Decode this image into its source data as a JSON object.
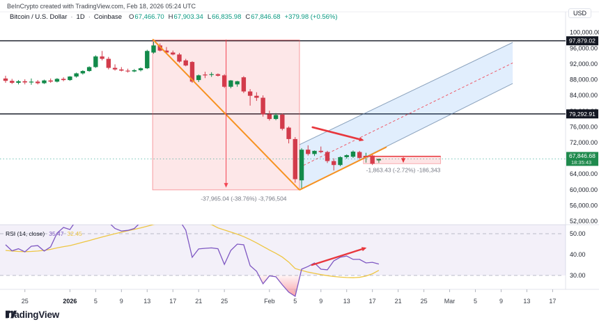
{
  "header": {
    "watermark": "BeInCrypto created with TradingView.com, Feb 18, 2026 05:24 UTC",
    "symbol": "Bitcoin / U.S. Dollar",
    "interval": "1D",
    "exchange": "Coinbase",
    "ohlc": {
      "o_label": "O",
      "o": "67,466.70",
      "h_label": "H",
      "h": "67,903.34",
      "l_label": "L",
      "l": "66,835.98",
      "c_label": "C",
      "c": "67,846.68",
      "change": "+379.98 (+0.56%)"
    },
    "currency_button": "USD"
  },
  "logo": {
    "word": "TradingView"
  },
  "rsi_label": {
    "title": "RSI (14, close)",
    "value": "35.47",
    "ma_value": "32.45"
  },
  "price_axis": {
    "labels": [
      {
        "text": "100,000.00",
        "price": 100000
      },
      {
        "text": "96,000.00",
        "price": 96000
      },
      {
        "text": "92,000.00",
        "price": 92000
      },
      {
        "text": "88,000.00",
        "price": 88000
      },
      {
        "text": "84,000.00",
        "price": 84000
      },
      {
        "text": "80,000.00",
        "price": 80000
      },
      {
        "text": "76,000.00",
        "price": 76000
      },
      {
        "text": "72,000.00",
        "price": 72000
      },
      {
        "text": "64,000.00",
        "price": 64000
      },
      {
        "text": "60,000.00",
        "price": 60000
      },
      {
        "text": "56,000.00",
        "price": 56000
      },
      {
        "text": "52,000.00",
        "price": 52000
      }
    ],
    "rsi_labels": [
      {
        "text": "50.00",
        "value": 50
      },
      {
        "text": "40.00",
        "value": 40
      },
      {
        "text": "30.00",
        "value": 30
      }
    ],
    "badges": [
      {
        "label": "97,879.02",
        "price": 97879.02,
        "type": "black"
      },
      {
        "label": "79,292.91",
        "price": 79292.91,
        "type": "black"
      },
      {
        "label": "67,846.68",
        "sub": "18:35:43",
        "price": 67846.68,
        "type": "green"
      }
    ]
  },
  "time_axis": {
    "labels": [
      {
        "label": "25",
        "day": 3
      },
      {
        "label": "2026",
        "day": 10,
        "bold": true
      },
      {
        "label": "5",
        "day": 14
      },
      {
        "label": "9",
        "day": 18
      },
      {
        "label": "13",
        "day": 22
      },
      {
        "label": "17",
        "day": 26
      },
      {
        "label": "21",
        "day": 30
      },
      {
        "label": "25",
        "day": 34
      },
      {
        "label": "Feb",
        "day": 41
      },
      {
        "label": "5",
        "day": 45
      },
      {
        "label": "9",
        "day": 49
      },
      {
        "label": "13",
        "day": 53
      },
      {
        "label": "17",
        "day": 57
      },
      {
        "label": "21",
        "day": 61
      },
      {
        "label": "25",
        "day": 65
      },
      {
        "label": "Mar",
        "day": 69
      },
      {
        "label": "5",
        "day": 73
      },
      {
        "label": "9",
        "day": 77
      },
      {
        "label": "13",
        "day": 81
      },
      {
        "label": "17",
        "day": 85
      }
    ]
  },
  "chart_data": {
    "type": "candlestick",
    "title": "Bitcoin / U.S. Dollar - 1D - Coinbase",
    "ylabel": "USD",
    "price_range_visible": [
      51900,
      101500
    ],
    "grid": false,
    "candles_ohlc": [
      [
        88300,
        89000,
        87200,
        87700
      ],
      [
        87700,
        88200,
        86900,
        87200
      ],
      [
        87200,
        87900,
        86800,
        87600
      ],
      [
        87600,
        88100,
        86800,
        87300
      ],
      [
        87300,
        88300,
        86700,
        87500
      ],
      [
        87500,
        87900,
        86800,
        87100
      ],
      [
        87100,
        88000,
        86900,
        87800
      ],
      [
        87800,
        88300,
        87200,
        87500
      ],
      [
        87500,
        88400,
        87300,
        88200
      ],
      [
        88200,
        88600,
        87600,
        87900
      ],
      [
        87900,
        88900,
        87700,
        88800
      ],
      [
        88800,
        89800,
        88500,
        89600
      ],
      [
        89600,
        90400,
        89300,
        90200
      ],
      [
        90200,
        91400,
        90000,
        91200
      ],
      [
        91200,
        94200,
        91000,
        93900
      ],
      [
        93900,
        95300,
        92900,
        93300
      ],
      [
        93300,
        93800,
        90600,
        91000
      ],
      [
        91000,
        91900,
        90300,
        90600
      ],
      [
        90600,
        91200,
        90100,
        90300
      ],
      [
        90300,
        90800,
        89800,
        90100
      ],
      [
        90100,
        90700,
        89900,
        90400
      ],
      [
        90400,
        91100,
        90100,
        90900
      ],
      [
        90900,
        95600,
        90700,
        95300
      ],
      [
        94900,
        97650,
        94600,
        96700
      ],
      [
        96700,
        97200,
        95200,
        95400
      ],
      [
        95400,
        96300,
        94700,
        94900
      ],
      [
        94900,
        95400,
        94200,
        94400
      ],
      [
        94400,
        94800,
        92300,
        92600
      ],
      [
        92900,
        93300,
        91400,
        91600
      ],
      [
        92500,
        92700,
        87200,
        87500
      ],
      [
        87900,
        89300,
        87400,
        89100
      ],
      [
        89300,
        90000,
        88400,
        89200
      ],
      [
        89200,
        89900,
        88700,
        89400
      ],
      [
        89400,
        89600,
        88800,
        89000
      ],
      [
        89100,
        89400,
        85900,
        86200
      ],
      [
        86200,
        87900,
        85800,
        87800
      ],
      [
        86800,
        87700,
        86200,
        87600
      ],
      [
        88600,
        88900,
        84600,
        85000
      ],
      [
        85000,
        85600,
        81400,
        83900
      ],
      [
        83900,
        84800,
        82600,
        83400
      ],
      [
        83400,
        84000,
        78600,
        79200
      ],
      [
        79200,
        80100,
        77600,
        78000
      ],
      [
        78000,
        79500,
        77700,
        79000
      ],
      [
        79100,
        79400,
        75100,
        75500
      ],
      [
        75800,
        76100,
        71800,
        72900
      ],
      [
        72900,
        73400,
        61800,
        62700
      ],
      [
        62400,
        70600,
        60100,
        70200
      ],
      [
        70200,
        71300,
        68700,
        69100
      ],
      [
        69100,
        70000,
        68600,
        69900
      ],
      [
        69900,
        71000,
        69300,
        69600
      ],
      [
        69600,
        69900,
        66800,
        67300
      ],
      [
        67300,
        68000,
        64900,
        66300
      ],
      [
        66300,
        68500,
        66000,
        68300
      ],
      [
        68300,
        69000,
        67900,
        68800
      ],
      [
        68400,
        70000,
        68100,
        69700
      ],
      [
        69600,
        69900,
        67800,
        68100
      ],
      [
        68200,
        69400,
        66900,
        68500
      ],
      [
        68700,
        69000,
        66300,
        66600
      ],
      [
        67466.7,
        67903.34,
        66835.98,
        67846.68
      ]
    ],
    "rsi": {
      "period_label": "RSI (14, close)",
      "current": 35.47,
      "ma_current": 32.45,
      "band": [
        30,
        70
      ],
      "mid": 50,
      "values": [
        44.7,
        41.8,
        42.8,
        41.3,
        44,
        44.3,
        41.7,
        43.7,
        50.3,
        53,
        52,
        56.5,
        59.5,
        62.5,
        67,
        61.5,
        55.5,
        52.5,
        51.3,
        51.6,
        52.5,
        55.5,
        62,
        66.5,
        63.5,
        61,
        59,
        56.5,
        51.7,
        38.7,
        42.7,
        43,
        43.2,
        42.8,
        35.3,
        42,
        45,
        44.7,
        34.7,
        32,
        26,
        29.8,
        29.4,
        25.5,
        22,
        20,
        33,
        34.3,
        36,
        33,
        32.7,
        37,
        38.7,
        39.3,
        37.7,
        37.7,
        36,
        36.3,
        35.47
      ],
      "ma_values": [
        42,
        41.7,
        41.5,
        41.4,
        41.5,
        41.7,
        42,
        42.5,
        43.2,
        43.8,
        44.3,
        45.1,
        45.9,
        46.7,
        47.6,
        48.4,
        49.2,
        50,
        50.7,
        51.4,
        52.1,
        52.8,
        53.6,
        54.4,
        55.2,
        55.8,
        56.2,
        56.4,
        56.3,
        55.8,
        55.4,
        54.9,
        54.4,
        52.8,
        51.8,
        50.8,
        49.8,
        48.6,
        47.2,
        45.6,
        43.9,
        42.2,
        40.6,
        38.8,
        36.4,
        33.3,
        32.4,
        31.6,
        31,
        30.4,
        29.9,
        29.5,
        29.2,
        29,
        28.9,
        29.1,
        29.7,
        30.8,
        32.45
      ]
    },
    "horizontal_lines": [
      {
        "price": 97879.02,
        "label": "97,879.02"
      },
      {
        "price": 79292.91,
        "label": "79,292.91"
      }
    ],
    "current_price_line": {
      "price": 67846.68,
      "label": "67,846.68",
      "countdown": "18:35:43"
    },
    "drawings": {
      "decline_box": {
        "from_day": 22.85,
        "to_day": 45.67,
        "top_price": 98100,
        "bottom_price": 59985,
        "arrow_day": 34.26,
        "label": "-37,965.04 (-38.76%) -3,796,504",
        "label_day": 37,
        "label_price": 57200
      },
      "range_box": {
        "from_day": 55.6,
        "to_day": 67.6,
        "top_price": 68508,
        "bottom_price": 66645,
        "arrow_day": 61.8,
        "label": "-1,863.43 (-2.72%) -186,343",
        "label_day": 61.8,
        "label_price": 64500
      },
      "trendline_down": {
        "from_day": 22.85,
        "from_price": 98300,
        "to_day": 45.67,
        "to_price": 59960
      },
      "trendline_up": {
        "from_day": 45.67,
        "from_price": 59960,
        "to_day": 59.2,
        "to_price": 70870
      },
      "channel": {
        "start_day": 45.67,
        "end_day": 78.8,
        "top_start_price": 71480,
        "top_end_price": 97470,
        "bottom_start_price": 59960,
        "bottom_end_price": 87030
      },
      "price_arrow": {
        "from_day": 47.7,
        "from_price": 75900,
        "to_day": 55.7,
        "to_price": 72550
      },
      "rsi_arrow": {
        "from_day": 47.6,
        "from_rsi": 35,
        "to_day": 56.1,
        "to_rsi": 43.3
      }
    }
  },
  "colors": {
    "up": "#128a4a",
    "down": "#d23b4b",
    "header_value_green": "#089981",
    "black_line": "#1e222d",
    "orange": "#f79221",
    "arrow_red": "#e8373d",
    "box_red_fill": "rgba(242,84,91,0.14)",
    "box_red_edge": "rgba(242,84,91,0.55)",
    "channel_fill": "rgba(90,158,245,0.18)",
    "channel_edge": "rgba(96,125,160,0.7)",
    "channel_mid": "#f23645",
    "rsi_purple": "#7e57c2",
    "rsi_yellow": "#eec643",
    "rsi_bg": "rgba(126,87,194,0.09)",
    "badge_green": "#1f8a4d",
    "axis_text": "#1a1e29",
    "muted_text": "#787b86",
    "grid_line": "#e0e3eb"
  }
}
